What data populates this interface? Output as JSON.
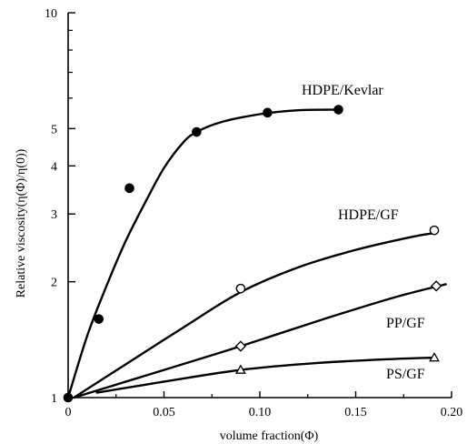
{
  "chart_data": {
    "type": "scatter",
    "title": "",
    "xlabel": "volume fraction(Φ)",
    "ylabel": "Relative viscosity(η(Φ)/η(0))",
    "xlim": [
      0,
      0.2
    ],
    "ylim": [
      1,
      10
    ],
    "yscale": "log",
    "grid": false,
    "x_ticks": [
      0,
      0.05,
      0.1,
      0.15,
      0.2
    ],
    "x_tick_labels": [
      "0",
      "0.05",
      "0.10",
      "0.15",
      "0.20"
    ],
    "y_ticks": [
      1,
      2,
      3,
      4,
      5,
      10
    ],
    "y_tick_labels": [
      "1",
      "2",
      "3",
      "4",
      "5",
      "10"
    ],
    "series": [
      {
        "name": "HDPE/Kevlar",
        "marker": "filled-circle",
        "x": [
          0,
          0.016,
          0.032,
          0.067,
          0.104,
          0.141
        ],
        "y": [
          1.0,
          1.6,
          3.5,
          4.9,
          5.5,
          5.6
        ]
      },
      {
        "name": "HDPE/GF",
        "marker": "open-circle",
        "x": [
          0.09,
          0.191
        ],
        "y": [
          1.92,
          2.72
        ]
      },
      {
        "name": "PP/GF",
        "marker": "open-diamond",
        "x": [
          0.09,
          0.192
        ],
        "y": [
          1.36,
          1.95
        ]
      },
      {
        "name": "PS/GF",
        "marker": "open-triangle",
        "x": [
          0.09,
          0.191
        ],
        "y": [
          1.18,
          1.27
        ]
      }
    ],
    "curves": [
      {
        "series": "HDPE/Kevlar",
        "x": [
          0,
          0.01,
          0.02,
          0.03,
          0.04,
          0.05,
          0.06,
          0.067,
          0.08,
          0.1,
          0.12,
          0.14
        ],
        "y": [
          1.0,
          1.45,
          1.95,
          2.55,
          3.2,
          3.95,
          4.6,
          4.9,
          5.2,
          5.45,
          5.58,
          5.6
        ]
      },
      {
        "series": "HDPE/GF",
        "x": [
          0.003,
          0.03,
          0.06,
          0.09,
          0.12,
          0.15,
          0.18,
          0.192
        ],
        "y": [
          1.0,
          1.22,
          1.52,
          1.88,
          2.18,
          2.42,
          2.62,
          2.68
        ]
      },
      {
        "series": "PP/GF",
        "x": [
          0.003,
          0.05,
          0.09,
          0.13,
          0.17,
          0.197
        ],
        "y": [
          1.0,
          1.18,
          1.36,
          1.58,
          1.82,
          1.97
        ]
      },
      {
        "series": "PS/GF",
        "x": [
          0.015,
          0.05,
          0.09,
          0.13,
          0.17,
          0.191
        ],
        "y": [
          1.03,
          1.1,
          1.18,
          1.23,
          1.26,
          1.27
        ]
      }
    ]
  }
}
